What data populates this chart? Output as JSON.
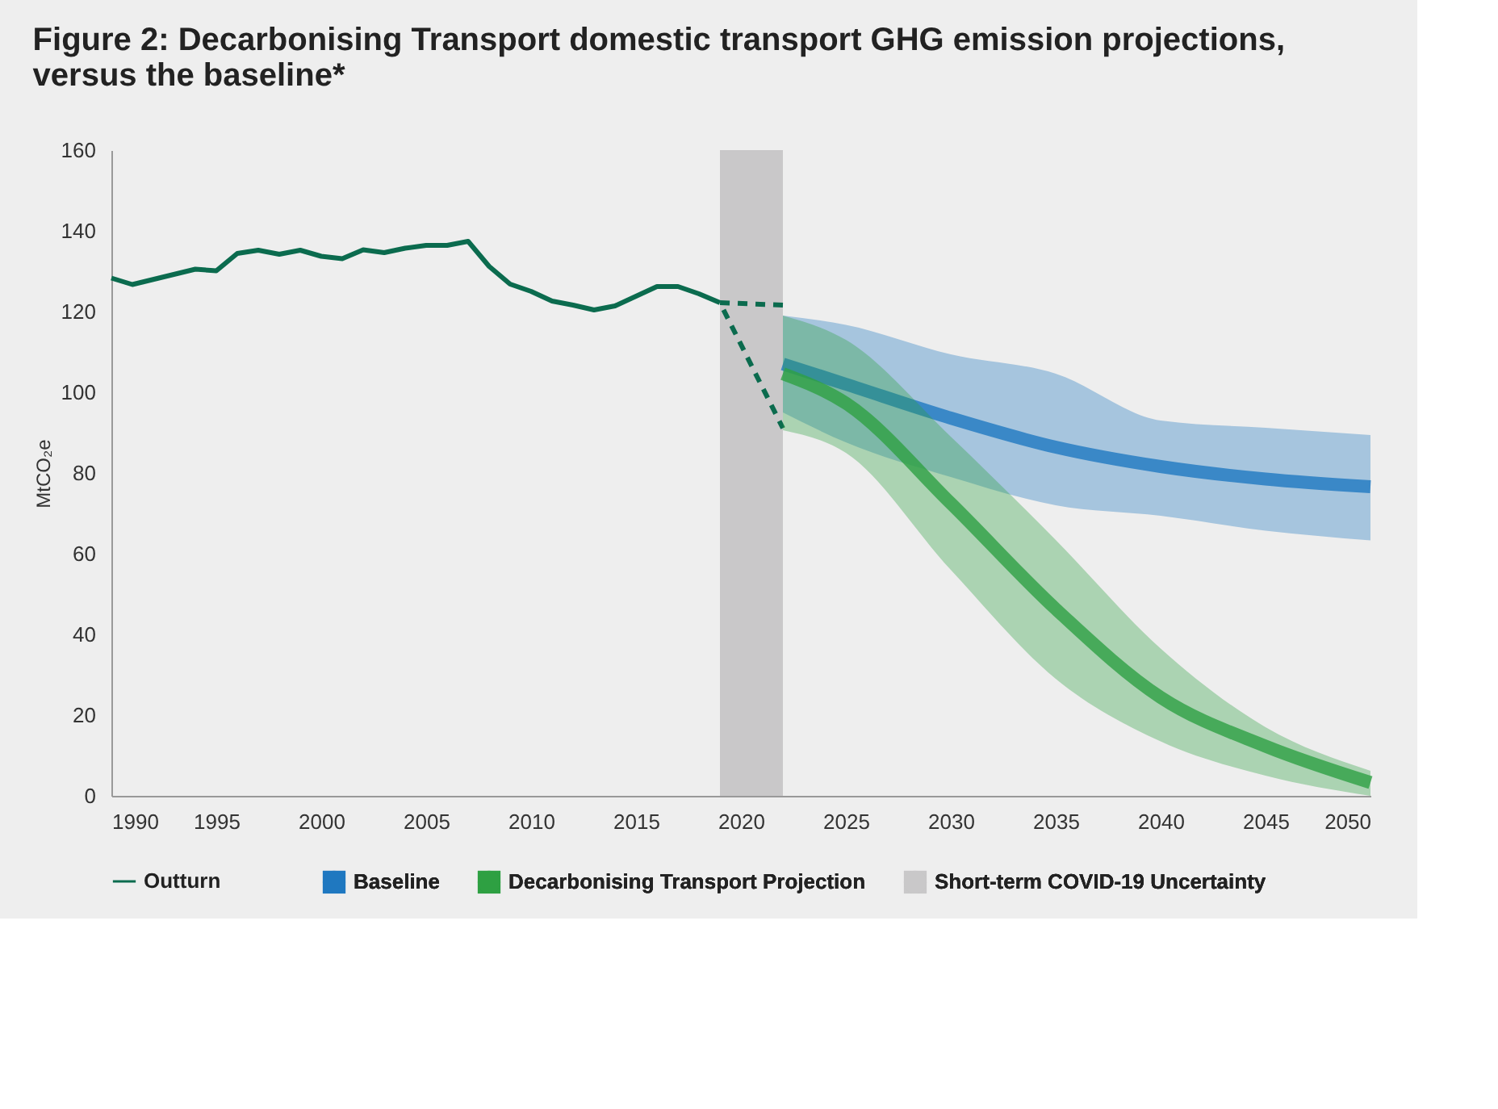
{
  "chart_data": {
    "type": "line",
    "title": [
      "Figure 2: Decarbonising Transport domestic transport GHG emission projections,",
      "versus the baseline*"
    ],
    "ylabel": "MtCO₂e",
    "xlim": [
      1990,
      2050
    ],
    "xticks": [
      1990,
      1995,
      2000,
      2005,
      2010,
      2015,
      2020,
      2025,
      2030,
      2035,
      2040,
      2045,
      2050
    ],
    "ylim": [
      0,
      160
    ],
    "yticks": [
      0,
      20,
      40,
      60,
      80,
      100,
      120,
      140,
      160
    ],
    "grid": false,
    "legend": "bottom",
    "marker": "none",
    "series": [
      {
        "name": "Outturn",
        "color": "#0b6b4e",
        "line_style": "solid",
        "x": [
          1990,
          1991,
          1994,
          1995,
          1996,
          1997,
          1998,
          1999,
          2000,
          2001,
          2002,
          2003,
          2004,
          2005,
          2006,
          2007,
          2008,
          2009,
          2010,
          2011,
          2012,
          2013,
          2014,
          2015,
          2016,
          2017,
          2018,
          2019
        ],
        "values": [
          128.3,
          126.7,
          130.5,
          130.1,
          134.4,
          135.2,
          134.2,
          135.2,
          133.7,
          133.1,
          135.3,
          134.6,
          135.7,
          136.4,
          136.4,
          137.4,
          131.2,
          126.8,
          125,
          122.6,
          121.6,
          120.4,
          121.4,
          123.8,
          126.2,
          126.2,
          124.4,
          122.2
        ]
      },
      {
        "color": "#0b6b4e",
        "line_style": "dashed",
        "x": [
          2022,
          2019,
          2022
        ],
        "values": [
          121.6,
          122.2,
          91.1
        ]
      },
      {
        "name": "Baseline",
        "color": "#1f78c1",
        "line_style": "solid",
        "x": [
          2022,
          2025,
          2030,
          2035,
          2040,
          2045,
          2050
        ],
        "values": [
          107,
          102,
          93.6,
          86.4,
          81.6,
          78.5,
          76.6
        ],
        "lower": [
          95,
          87.6,
          79,
          72,
          69.4,
          65.7,
          63.3
        ],
        "upper": [
          119,
          116.7,
          109.4,
          104.6,
          93,
          91.2,
          89.4
        ]
      },
      {
        "name": "Decarbonising Transport Projection",
        "color": "#2ea043",
        "line_style": "solid",
        "x": [
          2022,
          2025,
          2030,
          2035,
          2040,
          2045,
          2050
        ],
        "values": [
          104.6,
          97.3,
          72.5,
          46.3,
          24.4,
          12.3,
          3.3
        ],
        "lower": [
          90.6,
          85,
          56,
          29,
          13.5,
          5,
          0
        ],
        "upper": [
          119,
          113,
          89,
          63.4,
          36.5,
          17,
          6.2
        ]
      }
    ],
    "bands": [
      {
        "axis": "x",
        "from": 2019,
        "to": 2022,
        "label": "Short-term COVID-19 Uncertainty",
        "color": "#c9c8c9"
      }
    ]
  }
}
